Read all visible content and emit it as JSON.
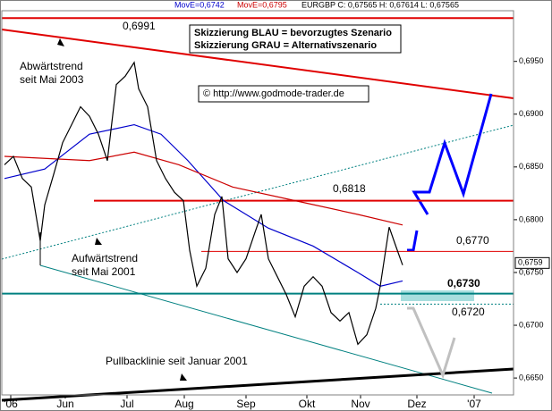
{
  "chart_data": {
    "type": "line",
    "series": [
      {
        "name": "MovE=0,6742",
        "color": "#0000cc",
        "x": [
          0.75,
          12,
          24.5,
          37,
          44.5,
          52,
          62,
          74.5,
          87,
          99.5,
          105.75,
          112
        ],
        "values": [
          0.6839,
          0.6848,
          0.6881,
          0.689,
          0.6881,
          0.6856,
          0.6818,
          0.6792,
          0.6775,
          0.675,
          0.6737,
          0.6742
        ]
      },
      {
        "name": "MovE=0,6795",
        "color": "#cc0000",
        "x": [
          0.75,
          24.5,
          37,
          49.5,
          64.5,
          82,
          99.5,
          112
        ],
        "values": [
          0.686,
          0.6856,
          0.6864,
          0.6852,
          0.6831,
          0.6818,
          0.6805,
          0.6795
        ]
      },
      {
        "name": "EURGBP C: 0,67565 H: 0,67614 L: 0,67565",
        "color": "#000000",
        "x": [
          0.75,
          3.25,
          5.75,
          8.25,
          10.75,
          12,
          14.5,
          17,
          19.5,
          22,
          24.5,
          27,
          29.5,
          32,
          34.5,
          37,
          38.25,
          40.75,
          43.25,
          45.75,
          48.25,
          50.75,
          52.5,
          54.5,
          57,
          59.5,
          61.5,
          63.25,
          65.75,
          68.25,
          70.75,
          72.5,
          74.5,
          77,
          79.5,
          82,
          84.5,
          87,
          89.5,
          92,
          94.5,
          97,
          99.5,
          102,
          104.5,
          105.75,
          108.25,
          110,
          112
        ],
        "values": [
          0.6852,
          0.686,
          0.6839,
          0.6831,
          0.678,
          0.6814,
          0.6843,
          0.6873,
          0.689,
          0.6907,
          0.6898,
          0.6881,
          0.6856,
          0.6928,
          0.6936,
          0.6949,
          0.6924,
          0.6907,
          0.6856,
          0.6839,
          0.6826,
          0.6818,
          0.6771,
          0.6737,
          0.6754,
          0.6805,
          0.6822,
          0.6763,
          0.675,
          0.6763,
          0.6788,
          0.6805,
          0.6763,
          0.6746,
          0.6729,
          0.6708,
          0.6737,
          0.6746,
          0.6737,
          0.6712,
          0.6704,
          0.6712,
          0.6682,
          0.6691,
          0.6716,
          0.6737,
          0.6793,
          0.6776,
          0.6757
        ]
      }
    ],
    "xlim": [
      0,
      143
    ],
    "xticks": [
      {
        "value": 2.5,
        "label": "'06"
      },
      {
        "value": 17.75,
        "label": "Jun"
      },
      {
        "value": 35,
        "label": "Jul"
      },
      {
        "value": 51,
        "label": "Aug"
      },
      {
        "value": 68.25,
        "label": "Sep"
      },
      {
        "value": 85.25,
        "label": "Okt"
      },
      {
        "value": 100.25,
        "label": "Nov"
      },
      {
        "value": 116,
        "label": "Dez"
      },
      {
        "value": 132,
        "label": "'07"
      }
    ],
    "ylim": [
      0.6634,
      0.6998
    ],
    "yticks": [
      {
        "value": 0.665,
        "label": "0,6650"
      },
      {
        "value": 0.67,
        "label": "0,6700"
      },
      {
        "value": 0.675,
        "label": "0,6750"
      },
      {
        "value": 0.68,
        "label": "0,6800"
      },
      {
        "value": 0.685,
        "label": "0,6850"
      },
      {
        "value": 0.69,
        "label": "0,6900"
      },
      {
        "value": 0.695,
        "label": "0,6950"
      }
    ],
    "levels": [
      {
        "value": 0.6991,
        "label": "0,6991",
        "color": "#e00000"
      },
      {
        "value": 0.6818,
        "label": "0,6818",
        "color": "#e00000"
      },
      {
        "value": 0.677,
        "label": "0,6770",
        "color": "#e00000"
      },
      {
        "value": 0.673,
        "label": "0,6730",
        "color": "#008080"
      },
      {
        "value": 0.672,
        "label": "0,6720",
        "color": "#008080"
      }
    ],
    "last_price": {
      "value": 0.6759,
      "label": "0,6759"
    },
    "annotations": {
      "downtrend": [
        "Abwärtstrend",
        "seit Mai 2003"
      ],
      "uptrend": [
        "Aufwärtstrend",
        "seit Mai 2001"
      ],
      "pullback": "Pullbacklinie seit Januar 2001",
      "scenario_box": [
        "Skizzierung BLAU = bevorzugtes Szenario",
        "Skizzierung GRAU = Alternativszenario"
      ],
      "copyright": "© http://www.godmode-trader.de"
    }
  }
}
